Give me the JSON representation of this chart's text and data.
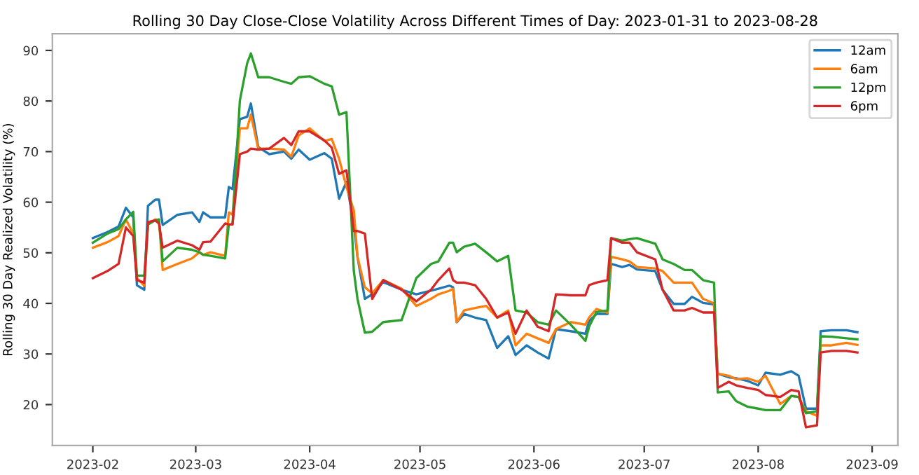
{
  "chart_data": {
    "type": "line",
    "title": "Rolling 30 Day Close-Close Volatility Across Different Times of Day: 2023-01-31 to 2023-08-28",
    "ylabel": "Rolling 30 Day Realized Volatility (%)",
    "x": [
      "2023-02-01",
      "2023-02-05",
      "2023-02-08",
      "2023-02-10",
      "2023-02-12",
      "2023-02-13",
      "2023-02-15",
      "2023-02-16",
      "2023-02-18",
      "2023-02-19",
      "2023-02-20",
      "2023-02-24",
      "2023-02-28",
      "2023-03-02",
      "2023-03-03",
      "2023-03-05",
      "2023-03-09",
      "2023-03-10",
      "2023-03-11",
      "2023-03-13",
      "2023-03-15",
      "2023-03-16",
      "2023-03-18",
      "2023-03-21",
      "2023-03-25",
      "2023-03-27",
      "2023-03-29",
      "2023-04-01",
      "2023-04-05",
      "2023-04-07",
      "2023-04-09",
      "2023-04-11",
      "2023-04-13",
      "2023-04-14",
      "2023-04-16",
      "2023-04-18",
      "2023-04-21",
      "2023-04-26",
      "2023-04-30",
      "2023-05-04",
      "2023-05-06",
      "2023-05-09",
      "2023-05-10",
      "2023-05-11",
      "2023-05-13",
      "2023-05-16",
      "2023-05-19",
      "2023-05-22",
      "2023-05-25",
      "2023-05-27",
      "2023-05-30",
      "2023-06-02",
      "2023-06-05",
      "2023-06-07",
      "2023-06-11",
      "2023-06-15",
      "2023-06-16",
      "2023-06-18",
      "2023-06-21",
      "2023-06-22",
      "2023-06-25",
      "2023-06-27",
      "2023-06-29",
      "2023-07-04",
      "2023-07-06",
      "2023-07-09",
      "2023-07-12",
      "2023-07-14",
      "2023-07-17",
      "2023-07-20",
      "2023-07-21",
      "2023-07-24",
      "2023-07-26",
      "2023-07-29",
      "2023-08-01",
      "2023-08-03",
      "2023-08-07",
      "2023-08-10",
      "2023-08-12",
      "2023-08-14",
      "2023-08-17",
      "2023-08-18",
      "2023-08-21",
      "2023-08-25",
      "2023-08-28"
    ],
    "series": [
      {
        "name": "12am",
        "color": "#1f77b4",
        "values": [
          52.9,
          54.1,
          55.2,
          58.9,
          57,
          43.6,
          42.7,
          59.3,
          60.5,
          60.5,
          55.5,
          57.5,
          58,
          56.1,
          58,
          57,
          57,
          63,
          62.6,
          76.4,
          76.9,
          79.5,
          70.9,
          69.5,
          70,
          68.6,
          70.4,
          68.4,
          69.7,
          68.6,
          60.7,
          64,
          55.6,
          49.2,
          40.9,
          41.8,
          44.2,
          42.7,
          41.8,
          42.5,
          42.9,
          43.5,
          43.2,
          36.3,
          37.9,
          37.2,
          36.7,
          31.2,
          33.5,
          29.8,
          31.7,
          30.3,
          29.1,
          34.9,
          34.5,
          34,
          36.5,
          37.9,
          37.9,
          47.8,
          47.2,
          47.6,
          46.7,
          46.4,
          42.7,
          39.9,
          39.9,
          41.3,
          40.1,
          39.8,
          26.1,
          25.4,
          25.2,
          24.7,
          23.8,
          26.3,
          25.9,
          26.6,
          25.7,
          19.2,
          19.2,
          34.5,
          34.7,
          34.7,
          34.3
        ]
      },
      {
        "name": "6am",
        "color": "#ff7f0e",
        "values": [
          51,
          52.1,
          53.3,
          56.6,
          53.8,
          45,
          43.5,
          55.6,
          56.6,
          56.4,
          46.6,
          47.8,
          48.9,
          50.1,
          49.6,
          50.1,
          49.4,
          58,
          57.5,
          74.6,
          74.6,
          77.3,
          70.6,
          70.6,
          70.4,
          69,
          73.2,
          74.6,
          72.1,
          72.5,
          68.6,
          63,
          58.4,
          49.2,
          43.2,
          42,
          44.6,
          42.9,
          39.5,
          40.9,
          41.8,
          42.5,
          42.9,
          36.3,
          38.6,
          39.1,
          39.5,
          37.2,
          38.6,
          31.7,
          34,
          33.1,
          32.2,
          34.9,
          36.3,
          35.8,
          37.2,
          38.9,
          38.2,
          49.2,
          48.7,
          48.3,
          47.2,
          46.9,
          46.4,
          44.1,
          44.1,
          44.1,
          40.9,
          40,
          26.1,
          25.7,
          25,
          25.2,
          24.5,
          25.7,
          20.1,
          21.7,
          21.5,
          18.7,
          17.8,
          31.7,
          31.7,
          32.2,
          31.8
        ]
      },
      {
        "name": "12pm",
        "color": "#2ca02c",
        "values": [
          52,
          53.8,
          54.7,
          56.6,
          58.1,
          45.5,
          45.5,
          55.6,
          56.4,
          56.6,
          48.3,
          51,
          50.6,
          50.1,
          49.6,
          49.4,
          48.9,
          55.6,
          55.6,
          80.1,
          87.5,
          89.4,
          84.7,
          84.7,
          83.8,
          83.4,
          84.7,
          84.9,
          83.4,
          82.9,
          77.3,
          77.8,
          46.4,
          40.9,
          34.2,
          34.4,
          36.3,
          36.7,
          45,
          47.8,
          48.3,
          52,
          52,
          50.1,
          51.2,
          51.8,
          50.1,
          48.3,
          49.4,
          38.6,
          38.2,
          36.3,
          35.8,
          38.6,
          35.8,
          32.6,
          35.4,
          38.3,
          38.6,
          52.9,
          52.4,
          52.7,
          52.9,
          51.8,
          48.7,
          47.8,
          46.6,
          46.6,
          44.6,
          44.1,
          22.4,
          22.6,
          20.7,
          19.6,
          19.2,
          18.9,
          18.9,
          21.7,
          21.5,
          18.3,
          18.7,
          33.5,
          33.4,
          33.1,
          32.9
        ]
      },
      {
        "name": "6pm",
        "color": "#d62728",
        "values": [
          45,
          46.4,
          47.8,
          55,
          53.3,
          44.6,
          44.1,
          56.1,
          56.4,
          55.8,
          51,
          52.4,
          51.5,
          50.6,
          52.1,
          52.2,
          55.8,
          55.6,
          55.6,
          69.5,
          70,
          70.6,
          70.4,
          70.6,
          72.7,
          71.3,
          74,
          74,
          72.2,
          70.8,
          65.6,
          66.3,
          54.3,
          54.3,
          53.8,
          40.9,
          44.6,
          42.7,
          40.4,
          42.7,
          44.6,
          46.9,
          44.6,
          44.1,
          44.1,
          43.6,
          40.9,
          37.2,
          38.2,
          34,
          38.6,
          35.4,
          34.5,
          41.8,
          41.6,
          41.6,
          43.6,
          44.1,
          44.6,
          52.9,
          52,
          52,
          50.1,
          48.7,
          42.7,
          38.6,
          38.6,
          39.1,
          38.2,
          38.2,
          23.3,
          24.5,
          23.8,
          23.3,
          22.9,
          21.9,
          21.5,
          22.9,
          22.6,
          15.5,
          15.9,
          30.3,
          30.6,
          30.6,
          30.3
        ]
      }
    ],
    "xlim": [
      "2023-01-21",
      "2023-09-08"
    ],
    "xticks": [
      {
        "value": "2023-02-01",
        "label": "2023-02"
      },
      {
        "value": "2023-03-01",
        "label": "2023-03"
      },
      {
        "value": "2023-04-01",
        "label": "2023-04"
      },
      {
        "value": "2023-05-01",
        "label": "2023-05"
      },
      {
        "value": "2023-06-01",
        "label": "2023-06"
      },
      {
        "value": "2023-07-01",
        "label": "2023-07"
      },
      {
        "value": "2023-08-01",
        "label": "2023-08"
      },
      {
        "value": "2023-09-01",
        "label": "2023-09"
      }
    ],
    "ylim": [
      11.9,
      93.3
    ],
    "yticks": [
      20,
      30,
      40,
      50,
      60,
      70,
      80,
      90
    ],
    "grid": false,
    "legend": "top right",
    "marker": "none",
    "line_style": "solid"
  }
}
